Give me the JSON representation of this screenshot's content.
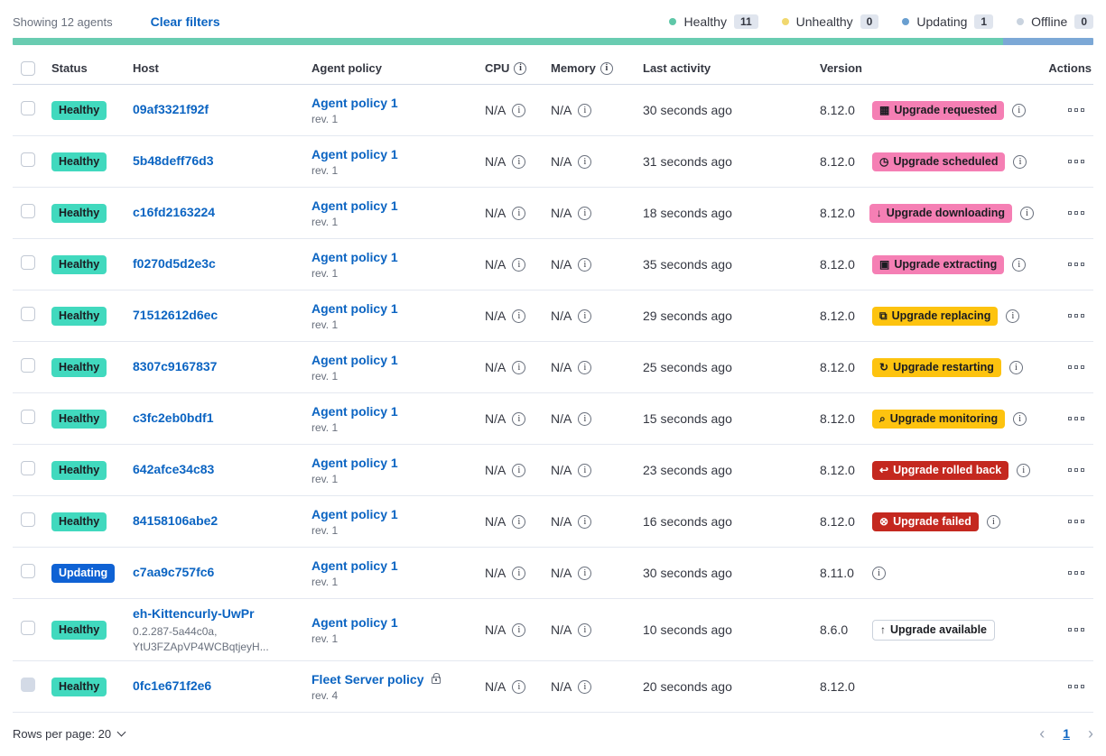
{
  "toolbar": {
    "showing": "Showing 12 agents",
    "clear_filters": "Clear filters"
  },
  "legend": [
    {
      "label": "Healthy",
      "count": "11",
      "dot": "#5FC7A8"
    },
    {
      "label": "Unhealthy",
      "count": "0",
      "dot": "#F1D86F"
    },
    {
      "label": "Updating",
      "count": "1",
      "dot": "#6A9FD0"
    },
    {
      "label": "Offline",
      "count": "0",
      "dot": "#C9D3DF"
    }
  ],
  "health_bar": [
    {
      "color": "#69CCB1",
      "flex": 11
    },
    {
      "color": "#7CA8D6",
      "flex": 1
    }
  ],
  "columns": {
    "status": "Status",
    "host": "Host",
    "policy": "Agent policy",
    "cpu": "CPU",
    "memory": "Memory",
    "last_activity": "Last activity",
    "version": "Version",
    "actions": "Actions"
  },
  "badge_colors": {
    "healthy": {
      "bg": "#41D9BE",
      "fg": "#1a1c21"
    },
    "updating": {
      "bg": "#0F62D4",
      "fg": "#ffffff"
    },
    "pink": {
      "bg": "#F57FB4",
      "fg": "#1a1c21"
    },
    "yellow": {
      "bg": "#FDC30F",
      "fg": "#1a1c21"
    },
    "red": {
      "bg": "#C4281F",
      "fg": "#ffffff"
    },
    "outline": {
      "bg": "#ffffff",
      "fg": "#1a1c21",
      "border": "#CBD2DC"
    }
  },
  "agents": [
    {
      "status": {
        "label": "Healthy",
        "variant": "healthy"
      },
      "host": {
        "name": "09af3321f92f",
        "sub": []
      },
      "policy": {
        "name": "Agent policy 1",
        "rev": "rev. 1",
        "locked": false
      },
      "cpu": "N/A",
      "memory": "N/A",
      "last_activity": "30 seconds ago",
      "version": "8.12.0",
      "upgrade": {
        "label": "Upgrade requested",
        "icon": "calendar-icon",
        "glyph": "▦",
        "variant": "pink"
      },
      "version_info": true,
      "checkbox_disabled": false
    },
    {
      "status": {
        "label": "Healthy",
        "variant": "healthy"
      },
      "host": {
        "name": "5b48deff76d3",
        "sub": []
      },
      "policy": {
        "name": "Agent policy 1",
        "rev": "rev. 1",
        "locked": false
      },
      "cpu": "N/A",
      "memory": "N/A",
      "last_activity": "31 seconds ago",
      "version": "8.12.0",
      "upgrade": {
        "label": "Upgrade scheduled",
        "icon": "clock-icon",
        "glyph": "◷",
        "variant": "pink"
      },
      "version_info": true,
      "checkbox_disabled": false
    },
    {
      "status": {
        "label": "Healthy",
        "variant": "healthy"
      },
      "host": {
        "name": "c16fd2163224",
        "sub": []
      },
      "policy": {
        "name": "Agent policy 1",
        "rev": "rev. 1",
        "locked": false
      },
      "cpu": "N/A",
      "memory": "N/A",
      "last_activity": "18 seconds ago",
      "version": "8.12.0",
      "upgrade": {
        "label": "Upgrade downloading",
        "icon": "download-icon",
        "glyph": "↓",
        "variant": "pink"
      },
      "version_info": true,
      "checkbox_disabled": false
    },
    {
      "status": {
        "label": "Healthy",
        "variant": "healthy"
      },
      "host": {
        "name": "f0270d5d2e3c",
        "sub": []
      },
      "policy": {
        "name": "Agent policy 1",
        "rev": "rev. 1",
        "locked": false
      },
      "cpu": "N/A",
      "memory": "N/A",
      "last_activity": "35 seconds ago",
      "version": "8.12.0",
      "upgrade": {
        "label": "Upgrade extracting",
        "icon": "package-icon",
        "glyph": "▣",
        "variant": "pink"
      },
      "version_info": true,
      "checkbox_disabled": false
    },
    {
      "status": {
        "label": "Healthy",
        "variant": "healthy"
      },
      "host": {
        "name": "71512612d6ec",
        "sub": []
      },
      "policy": {
        "name": "Agent policy 1",
        "rev": "rev. 1",
        "locked": false
      },
      "cpu": "N/A",
      "memory": "N/A",
      "last_activity": "29 seconds ago",
      "version": "8.12.0",
      "upgrade": {
        "label": "Upgrade replacing",
        "icon": "copy-icon",
        "glyph": "⧉",
        "variant": "yellow"
      },
      "version_info": true,
      "checkbox_disabled": false
    },
    {
      "status": {
        "label": "Healthy",
        "variant": "healthy"
      },
      "host": {
        "name": "8307c9167837",
        "sub": []
      },
      "policy": {
        "name": "Agent policy 1",
        "rev": "rev. 1",
        "locked": false
      },
      "cpu": "N/A",
      "memory": "N/A",
      "last_activity": "25 seconds ago",
      "version": "8.12.0",
      "upgrade": {
        "label": "Upgrade restarting",
        "icon": "refresh-icon",
        "glyph": "↻",
        "variant": "yellow"
      },
      "version_info": true,
      "checkbox_disabled": false
    },
    {
      "status": {
        "label": "Healthy",
        "variant": "healthy"
      },
      "host": {
        "name": "c3fc2eb0bdf1",
        "sub": []
      },
      "policy": {
        "name": "Agent policy 1",
        "rev": "rev. 1",
        "locked": false
      },
      "cpu": "N/A",
      "memory": "N/A",
      "last_activity": "15 seconds ago",
      "version": "8.12.0",
      "upgrade": {
        "label": "Upgrade monitoring",
        "icon": "inspect-icon",
        "glyph": "⌕",
        "variant": "yellow"
      },
      "version_info": true,
      "checkbox_disabled": false
    },
    {
      "status": {
        "label": "Healthy",
        "variant": "healthy"
      },
      "host": {
        "name": "642afce34c83",
        "sub": []
      },
      "policy": {
        "name": "Agent policy 1",
        "rev": "rev. 1",
        "locked": false
      },
      "cpu": "N/A",
      "memory": "N/A",
      "last_activity": "23 seconds ago",
      "version": "8.12.0",
      "upgrade": {
        "label": "Upgrade rolled back",
        "icon": "return-icon",
        "glyph": "↩",
        "variant": "red"
      },
      "version_info": true,
      "checkbox_disabled": false
    },
    {
      "status": {
        "label": "Healthy",
        "variant": "healthy"
      },
      "host": {
        "name": "84158106abe2",
        "sub": []
      },
      "policy": {
        "name": "Agent policy 1",
        "rev": "rev. 1",
        "locked": false
      },
      "cpu": "N/A",
      "memory": "N/A",
      "last_activity": "16 seconds ago",
      "version": "8.12.0",
      "upgrade": {
        "label": "Upgrade failed",
        "icon": "error-icon",
        "glyph": "⊗",
        "variant": "red"
      },
      "version_info": true,
      "checkbox_disabled": false
    },
    {
      "status": {
        "label": "Updating",
        "variant": "updating"
      },
      "host": {
        "name": "c7aa9c757fc6",
        "sub": []
      },
      "policy": {
        "name": "Agent policy 1",
        "rev": "rev. 1",
        "locked": false
      },
      "cpu": "N/A",
      "memory": "N/A",
      "last_activity": "30 seconds ago",
      "version": "8.11.0",
      "upgrade": null,
      "version_info": true,
      "checkbox_disabled": false
    },
    {
      "status": {
        "label": "Healthy",
        "variant": "healthy"
      },
      "host": {
        "name": "eh-Kittencurly-UwPr",
        "sub": [
          "0.2.287-5a44c0a,",
          "YtU3FZApVP4WCBqtjeyH..."
        ]
      },
      "policy": {
        "name": "Agent policy 1",
        "rev": "rev. 1",
        "locked": false
      },
      "cpu": "N/A",
      "memory": "N/A",
      "last_activity": "10 seconds ago",
      "version": "8.6.0",
      "upgrade": {
        "label": "Upgrade available",
        "icon": "up-arrow-icon",
        "glyph": "↑",
        "variant": "outline"
      },
      "version_info": false,
      "checkbox_disabled": false
    },
    {
      "status": {
        "label": "Healthy",
        "variant": "healthy"
      },
      "host": {
        "name": "0fc1e671f2e6",
        "sub": []
      },
      "policy": {
        "name": "Fleet Server policy",
        "rev": "rev. 4",
        "locked": true
      },
      "cpu": "N/A",
      "memory": "N/A",
      "last_activity": "20 seconds ago",
      "version": "8.12.0",
      "upgrade": null,
      "version_info": false,
      "checkbox_disabled": true
    }
  ],
  "footer": {
    "rows_per_page": "Rows per page: 20",
    "page": "1",
    "prev_icon": "‹",
    "next_icon": "›"
  }
}
